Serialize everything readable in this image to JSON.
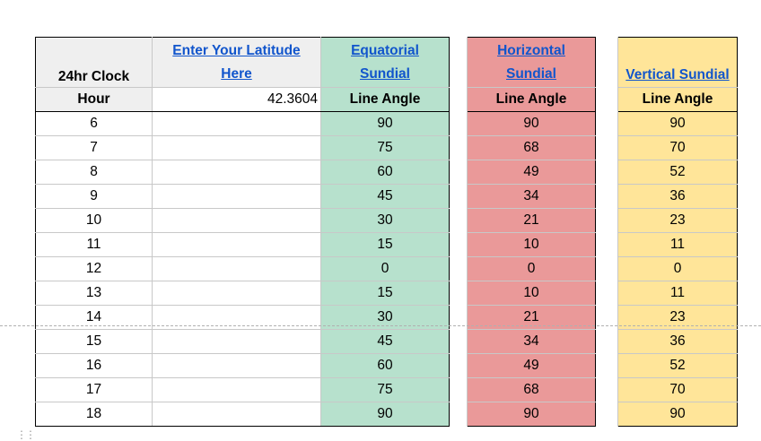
{
  "headers": {
    "clock_title": "24hr Clock",
    "latitude_prompt": [
      "Enter Your Latitude",
      "Here"
    ],
    "equatorial": [
      "Equatorial",
      "Sundial"
    ],
    "horizontal": [
      "Horizontal",
      "Sundial"
    ],
    "vertical": "Vertical Sundial",
    "hour": "Hour",
    "latitude_value": "42.3604",
    "line_angle": "Line Angle"
  },
  "rows": [
    {
      "hour": "6",
      "eq": "90",
      "ho": "90",
      "ve": "90"
    },
    {
      "hour": "7",
      "eq": "75",
      "ho": "68",
      "ve": "70"
    },
    {
      "hour": "8",
      "eq": "60",
      "ho": "49",
      "ve": "52"
    },
    {
      "hour": "9",
      "eq": "45",
      "ho": "34",
      "ve": "36"
    },
    {
      "hour": "10",
      "eq": "30",
      "ho": "21",
      "ve": "23"
    },
    {
      "hour": "11",
      "eq": "15",
      "ho": "10",
      "ve": "11"
    },
    {
      "hour": "12",
      "eq": "0",
      "ho": "0",
      "ve": "0"
    },
    {
      "hour": "13",
      "eq": "15",
      "ho": "10",
      "ve": "11"
    },
    {
      "hour": "14",
      "eq": "30",
      "ho": "21",
      "ve": "23"
    },
    {
      "hour": "15",
      "eq": "45",
      "ho": "34",
      "ve": "36"
    },
    {
      "hour": "16",
      "eq": "60",
      "ho": "49",
      "ve": "52"
    },
    {
      "hour": "17",
      "eq": "75",
      "ho": "68",
      "ve": "70"
    },
    {
      "hour": "18",
      "eq": "90",
      "ho": "90",
      "ve": "90"
    }
  ],
  "colors": {
    "equatorial": "#b7e1cd",
    "horizontal": "#ea9999",
    "vertical": "#ffe599",
    "label_bg": "#efefef",
    "link": "#1155cc"
  },
  "handle_icon": "drag-handle-icon"
}
